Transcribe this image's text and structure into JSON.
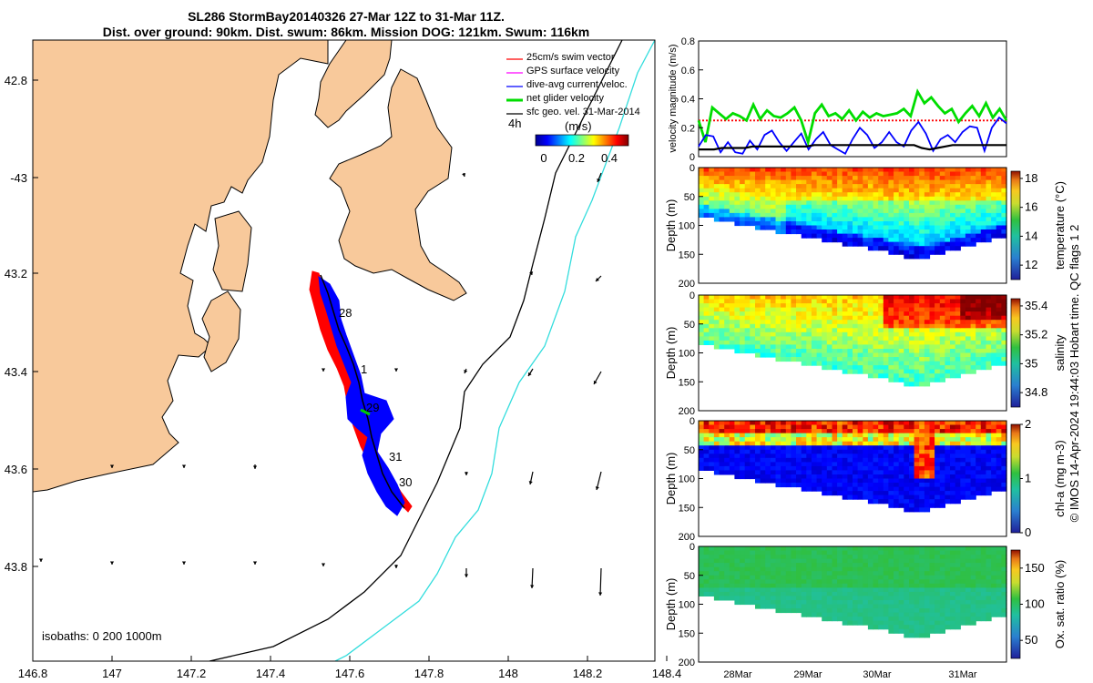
{
  "header": {
    "title_line1": "SL286 StormBay20140326 27-Mar 12Z to 31-Mar 11Z.",
    "title_line2": "Dist. over ground: 90km. Dist. swum: 86km. Mission DOG: 121km. Swum: 116km"
  },
  "map": {
    "lon_ticks": [
      "146.8",
      "147",
      "147.2",
      "147.4",
      "147.6",
      "147.8",
      "148",
      "148.2",
      "148.4"
    ],
    "lat_ticks": [
      "42.8",
      "-43",
      "43.2",
      "43.4",
      "43.6",
      "43.8"
    ],
    "day_labels": [
      "28",
      "1",
      "29",
      "31",
      "30"
    ],
    "isobaths_label": "isobaths: 0   200  1000m",
    "legend": [
      {
        "label": "25cm/s swim vector",
        "color": "#ff0000"
      },
      {
        "label": "GPS surface velocity",
        "color": "#ff00ff"
      },
      {
        "label": "dive-avg current veloc.",
        "color": "#0000ff"
      },
      {
        "label": "net glider velocity",
        "color": "#00dd00"
      },
      {
        "label": "sfc geo. vel. 31-Mar-2014",
        "color": "#000000"
      }
    ],
    "colorbar_prefix": "4h",
    "colorbar_title": "(m/s)",
    "colorbar_ticks": [
      "0",
      "0.2",
      "0.4"
    ],
    "land_color": "#f8c99b",
    "track_swim_color": "#ff0000",
    "track_current_color": "#0000ff",
    "bathy_200_color": "#000000",
    "bathy_1000_color": "#33dddd"
  },
  "chart_data": [
    {
      "type": "line",
      "title": "velocity magnitude",
      "ylabel": "velocity magnitude (m/s)",
      "ylim": [
        0,
        0.8
      ],
      "yticks": [
        "0",
        "0.2",
        "0.4",
        "0.6",
        "0.8"
      ],
      "xlim_days": [
        27.5,
        31.47
      ],
      "series": [
        {
          "name": "25cm/s swim vector",
          "color": "#ff0000",
          "values": [
            0.25,
            0.25
          ]
        },
        {
          "name": "net glider velocity",
          "color": "#00dd00",
          "values": [
            0.25,
            0.1,
            0.34,
            0.3,
            0.26,
            0.3,
            0.28,
            0.25,
            0.36,
            0.26,
            0.32,
            0.28,
            0.27,
            0.3,
            0.34,
            0.25,
            0.1,
            0.3,
            0.36,
            0.28,
            0.3,
            0.26,
            0.32,
            0.25,
            0.31,
            0.27,
            0.3,
            0.28,
            0.29,
            0.3,
            0.33,
            0.28,
            0.45,
            0.37,
            0.41,
            0.35,
            0.3,
            0.33,
            0.24,
            0.3,
            0.35,
            0.28,
            0.37,
            0.27,
            0.33,
            0.25
          ]
        },
        {
          "name": "dive-avg current veloc.",
          "color": "#0000ff",
          "values": [
            0.07,
            0.15,
            0.14,
            0.03,
            0.1,
            0.03,
            0.02,
            0.11,
            0.05,
            0.15,
            0.18,
            0.1,
            0.04,
            0.1,
            0.16,
            0.05,
            0.12,
            0.17,
            0.08,
            0.05,
            0.02,
            0.12,
            0.2,
            0.15,
            0.06,
            0.1,
            0.17,
            0.1,
            0.07,
            0.18,
            0.24,
            0.16,
            0.04,
            0.12,
            0.15,
            0.1,
            0.17,
            0.21,
            0.2,
            0.04,
            0.2,
            0.27,
            0.23
          ]
        },
        {
          "name": "sfc geo. vel.",
          "color": "#000000",
          "values": [
            0.05,
            0.05,
            0.05,
            0.06,
            0.06,
            0.06,
            0.06,
            0.07,
            0.07,
            0.07,
            0.07,
            0.07,
            0.07,
            0.07,
            0.07,
            0.08,
            0.08,
            0.08,
            0.08,
            0.08,
            0.08,
            0.08,
            0.08,
            0.08,
            0.08,
            0.08,
            0.08,
            0.08,
            0.08,
            0.06,
            0.05,
            0.06,
            0.07,
            0.08,
            0.08,
            0.08,
            0.08,
            0.08,
            0.08,
            0.08,
            0.08
          ]
        }
      ]
    },
    {
      "type": "heatmap",
      "ylabel": "Depth (m)",
      "cbar_label": "temperature (°C)",
      "cbar_ticks": [
        "12",
        "14",
        "16",
        "18"
      ],
      "clim": [
        11,
        18.5
      ],
      "yticks": [
        "0",
        "50",
        "100",
        "150",
        "200"
      ],
      "ylim": [
        0,
        200
      ]
    },
    {
      "type": "heatmap",
      "ylabel": "Depth (m)",
      "cbar_label": "salinity",
      "cbar_ticks": [
        "34.8",
        "35",
        "35.2",
        "35.4"
      ],
      "clim": [
        34.7,
        35.45
      ],
      "yticks": [
        "0",
        "50",
        "100",
        "150",
        "200"
      ],
      "ylim": [
        0,
        200
      ]
    },
    {
      "type": "heatmap",
      "ylabel": "Depth (m)",
      "cbar_label": "chl-a (mg m-3)",
      "cbar_ticks": [
        "0",
        "1",
        "2"
      ],
      "clim": [
        0,
        2
      ],
      "yticks": [
        "0",
        "50",
        "100",
        "150",
        "200"
      ],
      "ylim": [
        0,
        200
      ]
    },
    {
      "type": "heatmap",
      "ylabel": "Depth (m)",
      "cbar_label": "Ox. sat. ratio (%)",
      "cbar_ticks": [
        "50",
        "100",
        "150"
      ],
      "clim": [
        25,
        175
      ],
      "yticks": [
        "0",
        "50",
        "100",
        "150",
        "200"
      ],
      "ylim": [
        0,
        200
      ]
    }
  ],
  "time_axis": {
    "ticks": [
      "28Mar",
      "29Mar",
      "30Mar",
      "31Mar"
    ]
  },
  "footer_note": "© IMOS 14-Apr-2024 19:44:03 Hobart time. QC flags 1  2"
}
